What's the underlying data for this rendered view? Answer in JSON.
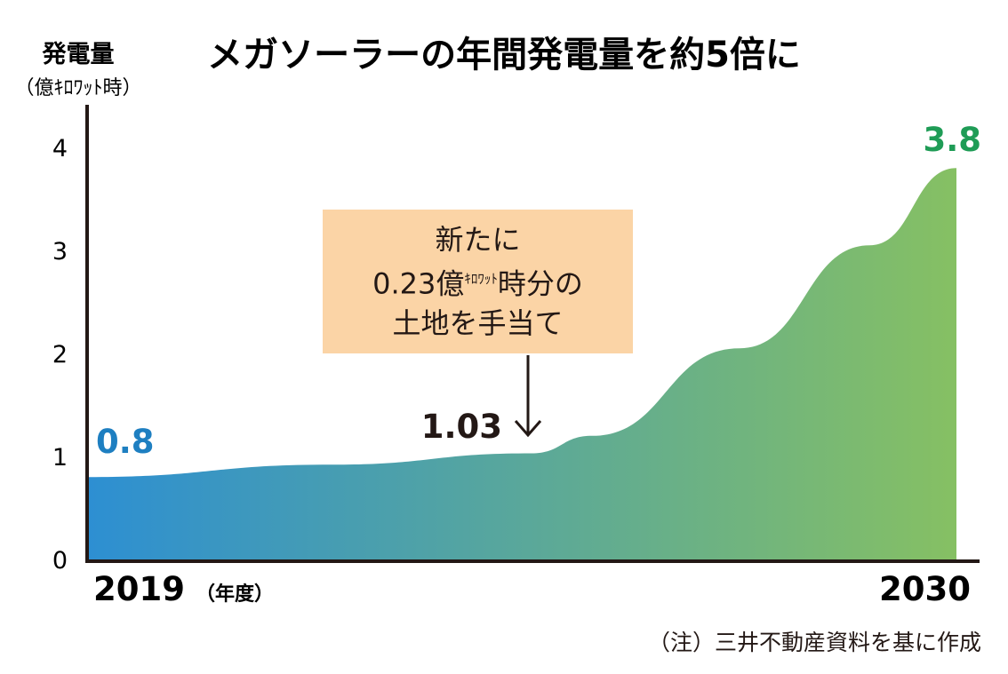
{
  "title": "メガソーラーの年間発電量を約5倍に",
  "note": "（注）三井不動産資料を基に作成",
  "callout": {
    "lines": [
      "新たに",
      "0.23億",
      "時分の",
      "土地を手当て"
    ],
    "unit_small": "ｷﾛﾜｯﾄ"
  },
  "colors": {
    "start": "#2d8fd2",
    "end": "#86c063",
    "start_label": "#1e7fc1",
    "end_label": "#1f9c56",
    "axis": "#231815",
    "callout_bg": "#fbd4a6"
  },
  "chart_data": {
    "type": "area",
    "title": "メガソーラーの年間発電量を約5倍に",
    "ylabel": "発電量（億ｷﾛﾜｯﾄ時）",
    "ylabel_line1": "発電量",
    "ylabel_line2": "（億ｷﾛﾜｯﾄ時）",
    "xlabel": "",
    "x_start_label": "2019",
    "x_start_unit": "（年度）",
    "x_end_label": "2030",
    "ylim": [
      0,
      4.5
    ],
    "yticks": [
      0,
      1,
      2,
      3,
      4
    ],
    "series": [
      {
        "points": [
          {
            "x": 0,
            "y": 0.8
          },
          {
            "x": 0.28,
            "y": 0.92
          },
          {
            "x": 0.51,
            "y": 1.03
          },
          {
            "x": 0.58,
            "y": 1.2
          },
          {
            "x": 0.75,
            "y": 2.05
          },
          {
            "x": 0.9,
            "y": 3.05
          },
          {
            "x": 1.0,
            "y": 3.8
          }
        ]
      }
    ],
    "annotations": [
      {
        "label": "0.8",
        "x": 0,
        "y": 0.8
      },
      {
        "label": "1.03",
        "x": 0.51,
        "y": 1.03
      },
      {
        "label": "3.8",
        "x": 1.0,
        "y": 3.8
      }
    ]
  }
}
